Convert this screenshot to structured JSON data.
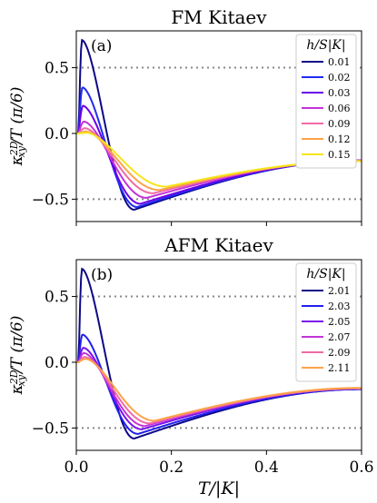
{
  "chart_data": [
    {
      "type": "line",
      "panel_label": "(a)",
      "title": "FM Kitaev",
      "ylabel": "κ_xy^2D / T (π/6)",
      "xlim": [
        0.0,
        0.6
      ],
      "ylim": [
        -0.67,
        0.78
      ],
      "yticks": [
        -0.5,
        0.0,
        0.5
      ],
      "ytick_labels": [
        "−0.5",
        "0.0",
        "0.5"
      ],
      "reference_lines": [
        0.5,
        -0.5
      ],
      "legend": {
        "title": "h/S|K|",
        "position": "top-right"
      },
      "series": [
        {
          "name": "0.01",
          "color": "#0d0887",
          "peak_x": 0.012,
          "peak_y": 0.71,
          "min_x": 0.122,
          "min_y": -0.58,
          "end_y": -0.205
        },
        {
          "name": "0.02",
          "color": "#1f2cf0",
          "peak_x": 0.013,
          "peak_y": 0.35,
          "min_x": 0.128,
          "min_y": -0.56,
          "end_y": -0.205
        },
        {
          "name": "0.03",
          "color": "#6a00e8",
          "peak_x": 0.014,
          "peak_y": 0.21,
          "min_x": 0.135,
          "min_y": -0.535,
          "end_y": -0.205
        },
        {
          "name": "0.06",
          "color": "#c433d9",
          "peak_x": 0.016,
          "peak_y": 0.09,
          "min_x": 0.148,
          "min_y": -0.49,
          "end_y": -0.205
        },
        {
          "name": "0.09",
          "color": "#f06aa5",
          "peak_x": 0.018,
          "peak_y": 0.04,
          "min_x": 0.162,
          "min_y": -0.455,
          "end_y": -0.21
        },
        {
          "name": "0.12",
          "color": "#fca348",
          "peak_x": 0.02,
          "peak_y": 0.015,
          "min_x": 0.175,
          "min_y": -0.43,
          "end_y": -0.21
        },
        {
          "name": "0.15",
          "color": "#f5e51a",
          "peak_x": 0.022,
          "peak_y": 0.005,
          "min_x": 0.19,
          "min_y": -0.405,
          "end_y": -0.21
        }
      ]
    },
    {
      "type": "line",
      "panel_label": "(b)",
      "title": "AFM Kitaev",
      "ylabel": "κ_xy^2D / T (π/6)",
      "xlabel": "T/|K|",
      "xlim": [
        0.0,
        0.6
      ],
      "ylim": [
        -0.67,
        0.78
      ],
      "xticks": [
        0.0,
        0.2,
        0.4,
        0.6
      ],
      "xtick_labels": [
        "0.0",
        "0.2",
        "0.4",
        "0.6"
      ],
      "yticks": [
        -0.5,
        0.0,
        0.5
      ],
      "ytick_labels": [
        "−0.5",
        "0.0",
        "0.5"
      ],
      "reference_lines": [
        0.5,
        -0.5
      ],
      "legend": {
        "title": "h/S|K|",
        "position": "top-right"
      },
      "series": [
        {
          "name": "2.01",
          "color": "#0d0887",
          "peak_x": 0.012,
          "peak_y": 0.71,
          "min_x": 0.122,
          "min_y": -0.58,
          "end_y": -0.205
        },
        {
          "name": "2.03",
          "color": "#2020ee",
          "peak_x": 0.013,
          "peak_y": 0.21,
          "min_x": 0.13,
          "min_y": -0.545,
          "end_y": -0.205
        },
        {
          "name": "2.05",
          "color": "#7a12ec",
          "peak_x": 0.015,
          "peak_y": 0.11,
          "min_x": 0.138,
          "min_y": -0.51,
          "end_y": -0.2
        },
        {
          "name": "2.07",
          "color": "#c433d9",
          "peak_x": 0.016,
          "peak_y": 0.07,
          "min_x": 0.145,
          "min_y": -0.485,
          "end_y": -0.2
        },
        {
          "name": "2.09",
          "color": "#f06aa5",
          "peak_x": 0.018,
          "peak_y": 0.04,
          "min_x": 0.155,
          "min_y": -0.465,
          "end_y": -0.2
        },
        {
          "name": "2.11",
          "color": "#fca348",
          "peak_x": 0.02,
          "peak_y": 0.025,
          "min_x": 0.165,
          "min_y": -0.445,
          "end_y": -0.195
        }
      ]
    }
  ]
}
